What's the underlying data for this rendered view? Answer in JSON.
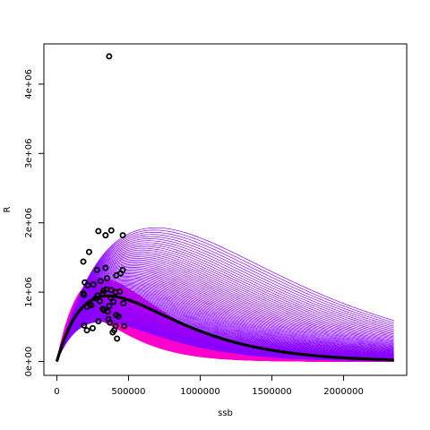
{
  "chart_data": {
    "type": "scatter",
    "title": "",
    "xlabel": "ssb",
    "ylabel": "R",
    "xlim": [
      -90000,
      2440000
    ],
    "ylim": [
      -200000,
      4580000
    ],
    "xticks": [
      0,
      500000,
      1000000,
      1500000,
      2000000
    ],
    "xtick_labels": [
      "0",
      "500000",
      "1000000",
      "1500000",
      "2000000"
    ],
    "yticks": [
      0,
      1000000,
      2000000,
      3000000,
      4000000
    ],
    "ytick_labels": [
      "0e+00",
      "1e+06",
      "2e+06",
      "3e+06",
      "4e+06"
    ],
    "grid": false,
    "legend": "none",
    "observations": {
      "name": "",
      "color": "#000000",
      "x": [
        365000,
        290000,
        380000,
        460000,
        340000,
        225000,
        185000,
        340000,
        280000,
        460000,
        415000,
        445000,
        305000,
        350000,
        255000,
        195000,
        215000,
        380000,
        410000,
        440000,
        320000,
        285000,
        270000,
        300000,
        190000,
        230000,
        240000,
        320000,
        355000,
        365000,
        395000,
        465000,
        210000,
        325000,
        345000,
        185000,
        375000,
        415000,
        430000,
        290000,
        330000,
        250000,
        410000,
        470000,
        190000,
        210000,
        390000,
        400000,
        420000,
        360000,
        370000
      ],
      "y": [
        4400000,
        1880000,
        1890000,
        1820000,
        1820000,
        1580000,
        1440000,
        1350000,
        1320000,
        1320000,
        1240000,
        1270000,
        1160000,
        1200000,
        1110000,
        1140000,
        1100000,
        1030000,
        1000000,
        1010000,
        980000,
        950000,
        910000,
        870000,
        960000,
        830000,
        810000,
        760000,
        720000,
        800000,
        860000,
        840000,
        790000,
        1020000,
        1040000,
        980000,
        920000,
        670000,
        650000,
        580000,
        740000,
        480000,
        510000,
        510000,
        520000,
        450000,
        420000,
        450000,
        330000,
        610000,
        560000
      ]
    },
    "median_curve": {
      "model": "Ricker R = a*ssb*exp(-b*ssb)",
      "a": 7.2,
      "b": 2.8e-06,
      "color": "#000000"
    },
    "pink_band": {
      "count": 120,
      "a_range": [
        8.4,
        10.4
      ],
      "b_range": [
        4.8e-06,
        3.2e-06
      ],
      "color": "#ff00cc"
    },
    "purple_band": {
      "count": 90,
      "a_range": [
        5.0,
        7.6
      ],
      "b_range": [
        3.2e-06,
        1.45e-06
      ],
      "color": "#8800ff"
    },
    "x_max": 2350000
  }
}
